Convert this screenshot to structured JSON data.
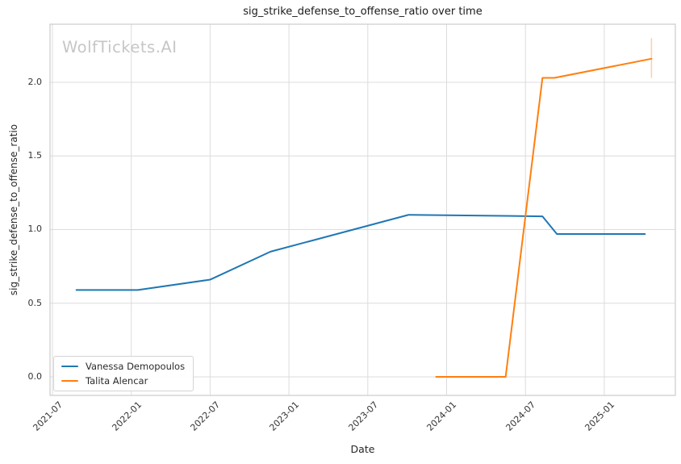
{
  "watermark": "WolfTickets.AI",
  "chart_data": {
    "type": "line",
    "title": "sig_strike_defense_to_offense_ratio over time",
    "xlabel": "Date",
    "ylabel": "sig_strike_defense_to_offense_ratio",
    "grid": true,
    "legend_position": "lower left",
    "background": "#ffffff",
    "grid_color": "#dcdcdc",
    "spine_color": "#cfcfcf",
    "x_tick_labels": [
      "2021-07",
      "2022-01",
      "2022-07",
      "2023-01",
      "2023-07",
      "2024-01",
      "2024-07",
      "2025-01"
    ],
    "y_tick_labels": [
      "0.0",
      "0.5",
      "1.0",
      "1.5",
      "2.0"
    ],
    "y_ticks": [
      0.0,
      0.5,
      1.0,
      1.5,
      2.0
    ],
    "ylim": [
      -0.13,
      2.39
    ],
    "series": [
      {
        "name": "Vanessa Demopoulos",
        "color": "#1f77b4",
        "points": [
          {
            "date": "2021-08-26",
            "value": 0.59
          },
          {
            "date": "2022-01-16",
            "value": 0.59
          },
          {
            "date": "2022-07-01",
            "value": 0.66
          },
          {
            "date": "2022-11-19",
            "value": 0.85
          },
          {
            "date": "2023-10-04",
            "value": 1.1
          },
          {
            "date": "2024-08-10",
            "value": 1.09
          },
          {
            "date": "2024-09-13",
            "value": 0.97
          },
          {
            "date": "2025-04-04",
            "value": 0.97
          }
        ]
      },
      {
        "name": "Talita Alencar",
        "color": "#ff7f0e",
        "points": [
          {
            "date": "2023-12-07",
            "value": 0.0
          },
          {
            "date": "2024-05-16",
            "value": 0.0
          },
          {
            "date": "2024-08-10",
            "value": 2.03
          },
          {
            "date": "2024-09-07",
            "value": 2.03
          },
          {
            "date": "2025-04-19",
            "value": 2.16
          }
        ],
        "error_bar": {
          "date": "2025-04-19",
          "low": 2.03,
          "high": 2.3
        }
      }
    ]
  }
}
